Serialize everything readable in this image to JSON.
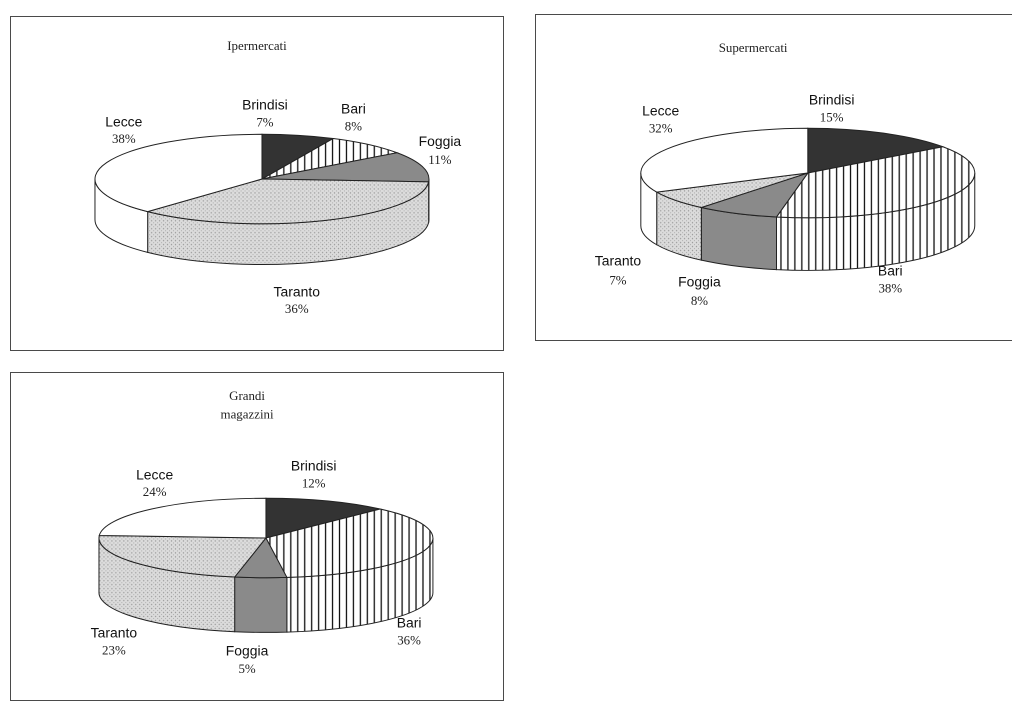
{
  "chart_data": [
    {
      "type": "pie",
      "title": "Ipermercati",
      "slices": [
        {
          "label": "Brindisi",
          "value": 7,
          "pct_label": "7%"
        },
        {
          "label": "Bari",
          "value": 8,
          "pct_label": "8%"
        },
        {
          "label": "Foggia",
          "value": 11,
          "pct_label": "11%"
        },
        {
          "label": "Taranto",
          "value": 36,
          "pct_label": "36%"
        },
        {
          "label": "Lecce",
          "value": 38,
          "pct_label": "38%"
        }
      ]
    },
    {
      "type": "pie",
      "title": "Supermercati",
      "slices": [
        {
          "label": "Brindisi",
          "value": 15,
          "pct_label": "15%"
        },
        {
          "label": "Bari",
          "value": 38,
          "pct_label": "38%"
        },
        {
          "label": "Foggia",
          "value": 8,
          "pct_label": "8%"
        },
        {
          "label": "Taranto",
          "value": 7,
          "pct_label": "7%"
        },
        {
          "label": "Lecce",
          "value": 32,
          "pct_label": "32%"
        }
      ]
    },
    {
      "type": "pie",
      "title": "Grandi magazzini",
      "title_lines": [
        "Grandi",
        "magazzini"
      ],
      "slices": [
        {
          "label": "Brindisi",
          "value": 12,
          "pct_label": "12%"
        },
        {
          "label": "Bari",
          "value": 36,
          "pct_label": "36%"
        },
        {
          "label": "Foggia",
          "value": 5,
          "pct_label": "5%"
        },
        {
          "label": "Taranto",
          "value": 23,
          "pct_label": "23%"
        },
        {
          "label": "Lecce",
          "value": 24,
          "pct_label": "24%"
        }
      ]
    }
  ],
  "colors": {
    "Brindisi": "#333333",
    "Bari": "stripes",
    "Foggia": "#8a8a8a",
    "Taranto": "#d6d6d6",
    "Lecce": "#ffffff"
  }
}
